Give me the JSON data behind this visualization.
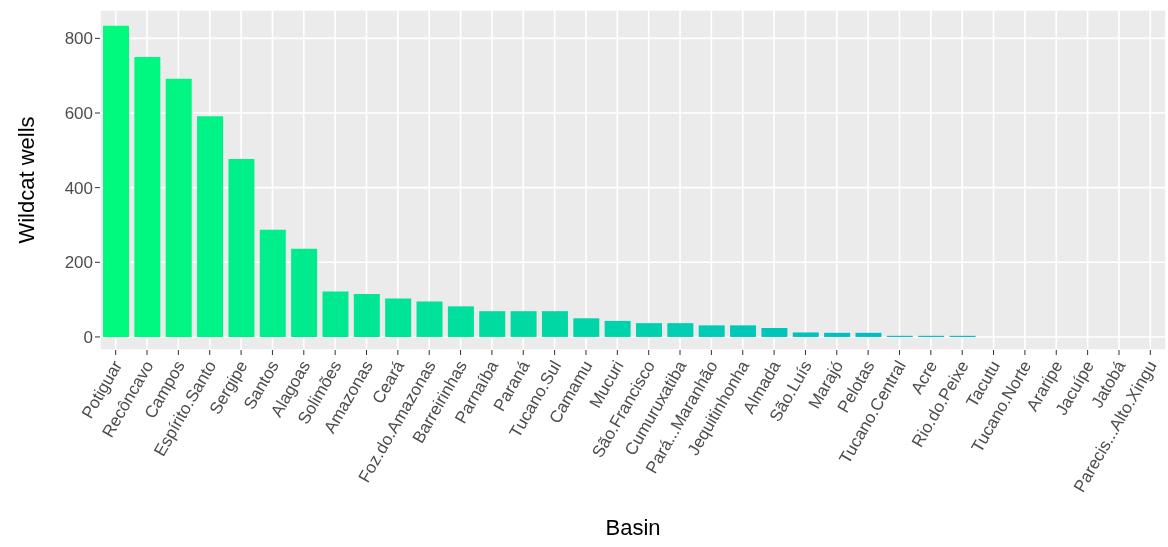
{
  "chart_data": {
    "type": "bar",
    "xlabel": "Basin",
    "ylabel": "Wildcat wells",
    "categories": [
      "Potiguar",
      "Recôncavo",
      "Campos",
      "Espírito.Santo",
      "Sergipe",
      "Santos",
      "Alagoas",
      "Solimões",
      "Amazonas",
      "Ceará",
      "Foz.do.Amazonas",
      "Barreirinhas",
      "Parnaíba",
      "Paraná",
      "Tucano.Sul",
      "Camamu",
      "Mucuri",
      "São.Francisco",
      "Cumuruxatiba",
      "Pará...Maranhão",
      "Jequitinhonha",
      "Almada",
      "São.Luís",
      "Marajó",
      "Pelotas",
      "Tucano.Central",
      "Acre",
      "Rio.do.Peixe",
      "Tacutu",
      "Tucano.Norte",
      "Araripe",
      "Jacuípe",
      "Jatobá",
      "Parecis...Alto.Xingu"
    ],
    "values": [
      834,
      750,
      692,
      591,
      477,
      287,
      236,
      122,
      115,
      103,
      95,
      82,
      69,
      69,
      69,
      50,
      43,
      37,
      37,
      31,
      31,
      24,
      12,
      11,
      11,
      3,
      3,
      3,
      0,
      0,
      0,
      0,
      0,
      0
    ],
    "colors": [
      "#00fa7d",
      "#00f880",
      "#00f583",
      "#00f386",
      "#00f089",
      "#00ee8b",
      "#00eb8e",
      "#00e991",
      "#00e694",
      "#00e497",
      "#00e19a",
      "#00df9d",
      "#00dca0",
      "#00daa2",
      "#00d7a5",
      "#00d5a8",
      "#00d2ab",
      "#00d0ae",
      "#00cdb1",
      "#00cbb4",
      "#00c8b7",
      "#00c6b9",
      "#00c3bc",
      "#00c1bf",
      "#00bec2",
      "#00bcc5",
      "#00b9c8",
      "#00b7cb",
      "#00b4ce",
      "#00b2d0",
      "#00afd3",
      "#00add6",
      "#00aad9",
      "#00a8dc"
    ],
    "ylim": [
      -35,
      876
    ],
    "yticks": [
      0,
      200,
      400,
      600,
      800
    ],
    "grid": true
  }
}
